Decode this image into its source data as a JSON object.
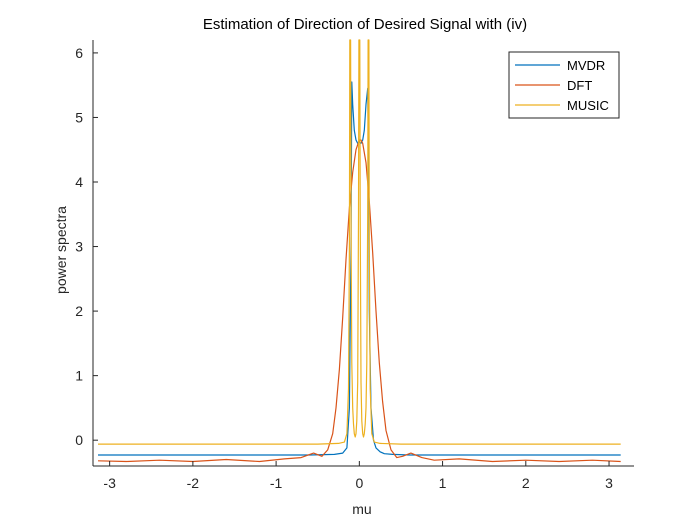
{
  "chart_data": {
    "type": "line",
    "title": "Estimation of Direction of Desired Signal with (iv)",
    "xlabel": "mu",
    "ylabel": "power spectra",
    "xlim": [
      -3.2,
      3.3
    ],
    "ylim": [
      -0.4,
      6.2
    ],
    "xticks": [
      -3,
      -2,
      -1,
      0,
      1,
      2,
      3
    ],
    "xtick_labels": [
      "-3",
      "-2",
      "-1",
      "0",
      "1",
      "2",
      "3"
    ],
    "yticks": [
      0,
      1,
      2,
      3,
      4,
      5,
      6
    ],
    "ytick_labels": [
      "0",
      "1",
      "2",
      "3",
      "4",
      "5",
      "6"
    ],
    "grid": false,
    "legend_position": "top-right",
    "series": [
      {
        "name": "MVDR",
        "color": "#0072BD",
        "x": [
          -3.14,
          -0.6,
          -0.3,
          -0.2,
          -0.15,
          -0.12,
          -0.1,
          -0.09,
          -0.08,
          -0.06,
          -0.04,
          -0.02,
          0.0,
          0.02,
          0.04,
          0.06,
          0.08,
          0.1,
          0.11,
          0.12,
          0.14,
          0.17,
          0.2,
          0.25,
          0.3,
          0.4,
          0.6,
          3.14
        ],
        "y": [
          -0.23,
          -0.23,
          -0.22,
          -0.2,
          -0.12,
          0.5,
          3.0,
          5.55,
          5.2,
          4.8,
          4.65,
          4.6,
          4.62,
          4.6,
          4.65,
          4.8,
          5.2,
          5.45,
          4.5,
          2.0,
          0.5,
          0.0,
          -0.12,
          -0.18,
          -0.21,
          -0.22,
          -0.23,
          -0.23
        ]
      },
      {
        "name": "DFT",
        "color": "#D95319",
        "x": [
          -3.14,
          -2.8,
          -2.4,
          -2.0,
          -1.6,
          -1.2,
          -0.9,
          -0.7,
          -0.55,
          -0.45,
          -0.38,
          -0.32,
          -0.28,
          -0.24,
          -0.2,
          -0.16,
          -0.12,
          -0.08,
          -0.04,
          0.0,
          0.02,
          0.04,
          0.08,
          0.12,
          0.16,
          0.2,
          0.24,
          0.28,
          0.32,
          0.38,
          0.45,
          0.52,
          0.62,
          0.75,
          0.9,
          1.2,
          1.6,
          2.0,
          2.4,
          2.8,
          3.14
        ],
        "y": [
          -0.32,
          -0.33,
          -0.31,
          -0.33,
          -0.3,
          -0.33,
          -0.29,
          -0.27,
          -0.2,
          -0.25,
          -0.15,
          0.1,
          0.5,
          1.1,
          1.9,
          2.8,
          3.6,
          4.15,
          4.5,
          4.65,
          4.65,
          4.6,
          4.3,
          3.7,
          2.9,
          2.0,
          1.2,
          0.6,
          0.15,
          -0.15,
          -0.27,
          -0.25,
          -0.2,
          -0.27,
          -0.31,
          -0.29,
          -0.33,
          -0.31,
          -0.33,
          -0.31,
          -0.33
        ]
      },
      {
        "name": "MUSIC",
        "color": "#EDB120",
        "x": [
          -3.14,
          -0.5,
          -0.25,
          -0.18,
          -0.15,
          -0.13,
          -0.12,
          -0.115,
          -0.11,
          -0.105,
          -0.1,
          -0.09,
          -0.08,
          -0.07,
          -0.06,
          -0.05,
          -0.04,
          -0.03,
          -0.02,
          -0.01,
          -0.005,
          0.0,
          0.005,
          0.01,
          0.02,
          0.03,
          0.04,
          0.05,
          0.06,
          0.07,
          0.08,
          0.09,
          0.1,
          0.105,
          0.11,
          0.115,
          0.12,
          0.13,
          0.15,
          0.18,
          0.25,
          0.5,
          3.14
        ],
        "y": [
          -0.06,
          -0.06,
          -0.05,
          -0.03,
          0.1,
          0.8,
          3.0,
          6.2,
          6.2,
          6.2,
          3.5,
          1.2,
          0.5,
          0.25,
          0.1,
          0.05,
          0.1,
          0.3,
          0.9,
          3.5,
          6.2,
          6.2,
          6.2,
          3.5,
          0.9,
          0.3,
          0.1,
          0.05,
          0.1,
          0.25,
          0.5,
          1.2,
          3.5,
          6.2,
          6.2,
          6.2,
          3.0,
          0.8,
          0.1,
          -0.03,
          -0.05,
          -0.06,
          -0.06
        ]
      }
    ]
  }
}
